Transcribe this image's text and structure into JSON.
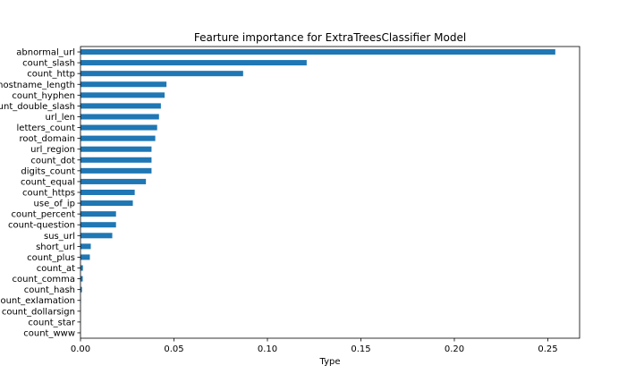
{
  "chart_data": {
    "type": "bar",
    "orientation": "horizontal",
    "title": "Fearture importance for ExtraTreesClassifier Model",
    "xlabel": "Type",
    "ylabel": "",
    "xlim": [
      0,
      0.267
    ],
    "xticks": [
      0.0,
      0.05,
      0.1,
      0.15,
      0.2,
      0.25
    ],
    "xtick_labels": [
      "0.00",
      "0.05",
      "0.10",
      "0.15",
      "0.20",
      "0.25"
    ],
    "grid": false,
    "bar_color": "#1f77b4",
    "categories": [
      "abnormal_url",
      "count_slash",
      "count_http",
      "hostname_length",
      "count_hyphen",
      "count_double_slash",
      "url_len",
      "letters_count",
      "root_domain",
      "url_region",
      "count_dot",
      "digits_count",
      "count_equal",
      "count_https",
      "use_of_ip",
      "count_percent",
      "count-question",
      "sus_url",
      "short_url",
      "count_plus",
      "count_at",
      "count_comma",
      "count_hash",
      "count_exlamation",
      "count_dollarsign",
      "count_star",
      "count_www"
    ],
    "values": [
      0.254,
      0.121,
      0.087,
      0.046,
      0.045,
      0.043,
      0.042,
      0.041,
      0.04,
      0.038,
      0.038,
      0.038,
      0.035,
      0.029,
      0.028,
      0.019,
      0.019,
      0.017,
      0.0055,
      0.005,
      0.0013,
      0.0012,
      0.0008,
      0.0002,
      0.0001,
      5e-05,
      2e-05
    ]
  }
}
